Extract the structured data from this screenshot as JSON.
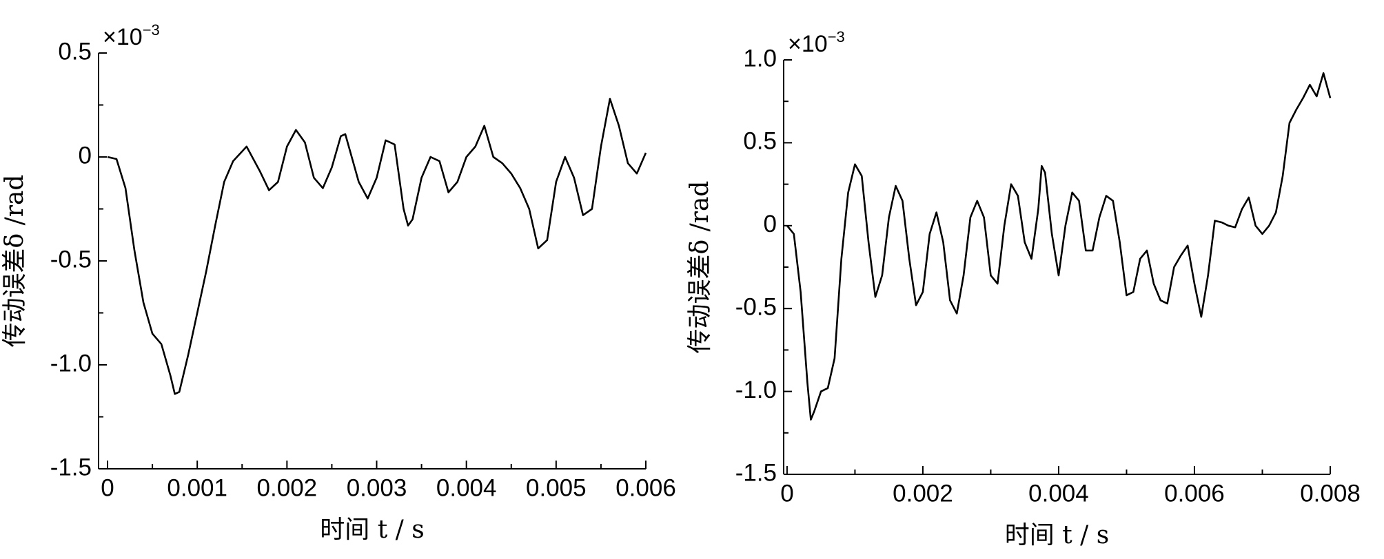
{
  "chart_data": [
    {
      "type": "line",
      "xlabel": "时间 t / s",
      "ylabel": "传动误差δ /rad",
      "multiplier": {
        "base": "×10",
        "exponent": "−3"
      },
      "xlim": [
        -0.0001,
        0.006
      ],
      "xticks": [
        0,
        0.001,
        0.002,
        0.003,
        0.004,
        0.005,
        0.006
      ],
      "ylim": [
        -1.5,
        0.5
      ],
      "yticks": [
        0.5,
        0,
        -0.5,
        {
          "value": -1,
          "label": "-1.0"
        },
        -1.5
      ],
      "color": "#000000",
      "x": [
        0,
        0.0001,
        0.0002,
        0.0003,
        0.0004,
        0.0005,
        0.0006,
        0.0007,
        0.00075,
        0.0008,
        0.0009,
        0.001,
        0.0011,
        0.0012,
        0.0013,
        0.0014,
        0.00155,
        0.0017,
        0.0018,
        0.0019,
        0.002,
        0.0021,
        0.0022,
        0.0023,
        0.0024,
        0.0025,
        0.0026,
        0.00265,
        0.0028,
        0.0029,
        0.003,
        0.0031,
        0.0032,
        0.0033,
        0.00335,
        0.0034,
        0.0035,
        0.0036,
        0.0037,
        0.0038,
        0.0039,
        0.004,
        0.0041,
        0.0042,
        0.0043,
        0.0044,
        0.0045,
        0.0046,
        0.0047,
        0.0048,
        0.0049,
        0.005,
        0.0051,
        0.0052,
        0.0053,
        0.0054,
        0.0055,
        0.0056,
        0.0057,
        0.0058,
        0.0059,
        0.006
      ],
      "values": [
        0,
        -0.01,
        -0.15,
        -0.45,
        -0.7,
        -0.85,
        -0.9,
        -1.05,
        -1.14,
        -1.13,
        -0.95,
        -0.75,
        -0.55,
        -0.33,
        -0.12,
        -0.02,
        0.05,
        -0.07,
        -0.16,
        -0.12,
        0.05,
        0.13,
        0.07,
        -0.1,
        -0.15,
        -0.05,
        0.1,
        0.11,
        -0.12,
        -0.2,
        -0.1,
        0.08,
        0.06,
        -0.25,
        -0.33,
        -0.3,
        -0.1,
        0,
        -0.02,
        -0.17,
        -0.12,
        0,
        0.05,
        0.15,
        0,
        -0.03,
        -0.08,
        -0.15,
        -0.25,
        -0.44,
        -0.4,
        -0.12,
        0,
        -0.1,
        -0.28,
        -0.25,
        0.05,
        0.28,
        0.15,
        -0.03,
        -0.08,
        0.02
      ]
    },
    {
      "type": "line",
      "xlabel": "时间 t / s",
      "ylabel": "传动误差δ /rad",
      "multiplier": {
        "base": "×10",
        "exponent": "−3"
      },
      "xlim": [
        -5e-05,
        0.008
      ],
      "xticks": [
        0,
        0.002,
        0.004,
        0.006,
        0.008
      ],
      "ylim": [
        -1.5,
        1
      ],
      "yticks": [
        {
          "value": 1,
          "label": "1.0"
        },
        0.5,
        0,
        -0.5,
        {
          "value": -1,
          "label": "-1.0"
        },
        -1.5
      ],
      "color": "#000000",
      "x": [
        0,
        0.0001,
        0.0002,
        0.0003,
        0.00035,
        0.0004,
        0.0005,
        0.0006,
        0.0007,
        0.0008,
        0.0009,
        0.001,
        0.0011,
        0.0012,
        0.0013,
        0.0014,
        0.0015,
        0.0016,
        0.0017,
        0.0018,
        0.0019,
        0.002,
        0.0021,
        0.0022,
        0.0023,
        0.0024,
        0.0025,
        0.0026,
        0.0027,
        0.0028,
        0.0029,
        0.003,
        0.0031,
        0.0032,
        0.0033,
        0.0034,
        0.0035,
        0.0036,
        0.0037,
        0.00375,
        0.0038,
        0.0039,
        0.004,
        0.0041,
        0.0042,
        0.0043,
        0.0044,
        0.0045,
        0.0046,
        0.0047,
        0.0048,
        0.0049,
        0.005,
        0.0051,
        0.0052,
        0.0053,
        0.0054,
        0.0055,
        0.0056,
        0.0057,
        0.0058,
        0.0059,
        0.006,
        0.0061,
        0.0062,
        0.0063,
        0.0064,
        0.0065,
        0.0066,
        0.0067,
        0.0068,
        0.0069,
        0.007,
        0.0071,
        0.0072,
        0.0073,
        0.0074,
        0.0075,
        0.0076,
        0.0077,
        0.0078,
        0.0079,
        0.008
      ],
      "values": [
        0,
        -0.05,
        -0.4,
        -0.95,
        -1.17,
        -1.12,
        -1,
        -0.98,
        -0.8,
        -0.2,
        0.2,
        0.37,
        0.3,
        -0.1,
        -0.43,
        -0.3,
        0.05,
        0.24,
        0.15,
        -0.2,
        -0.48,
        -0.4,
        -0.05,
        0.08,
        -0.1,
        -0.45,
        -0.53,
        -0.3,
        0.05,
        0.15,
        0.05,
        -0.3,
        -0.35,
        0,
        0.25,
        0.18,
        -0.1,
        -0.2,
        0.1,
        0.36,
        0.32,
        -0.05,
        -0.3,
        0,
        0.2,
        0.15,
        -0.15,
        -0.15,
        0.05,
        0.18,
        0.15,
        -0.1,
        -0.42,
        -0.4,
        -0.2,
        -0.15,
        -0.35,
        -0.45,
        -0.47,
        -0.25,
        -0.18,
        -0.12,
        -0.35,
        -0.55,
        -0.3,
        0.03,
        0.02,
        0,
        -0.01,
        0.1,
        0.17,
        0,
        -0.05,
        0,
        0.08,
        0.3,
        0.62,
        0.7,
        0.77,
        0.85,
        0.78,
        0.92,
        0.77
      ]
    }
  ]
}
